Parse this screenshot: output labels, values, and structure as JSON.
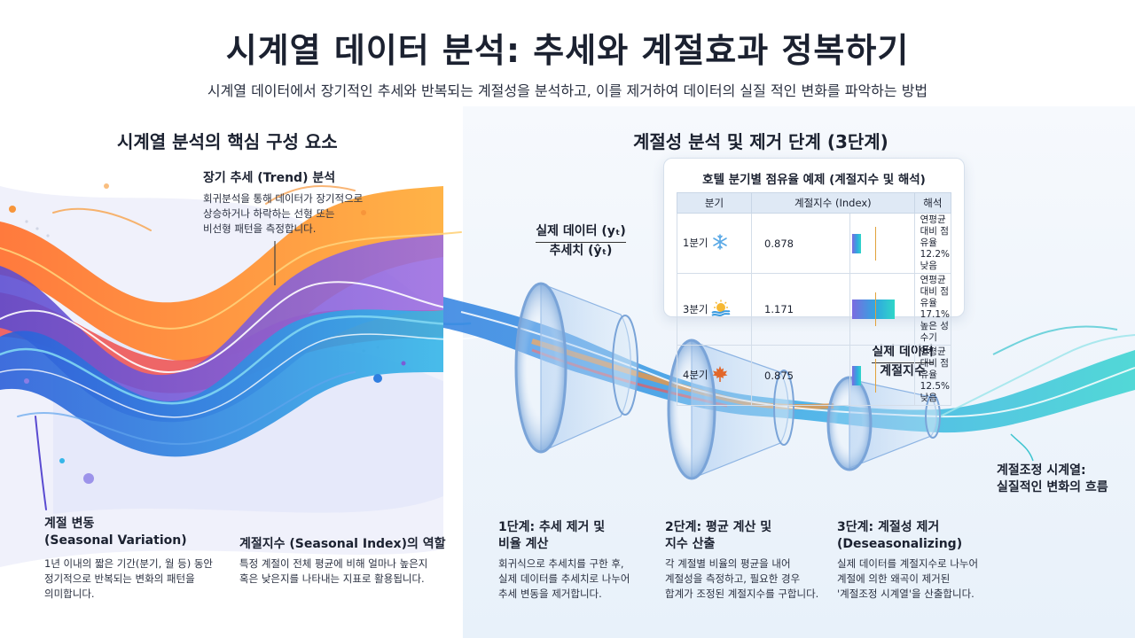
{
  "title": "시계열 데이터 분석: 추세와 계절효과 정복하기",
  "subtitle": "시계열 데이터에서 장기적인 추세와 반복되는 계절성을 분석하고, 이를 제거하여 데이터의 실질 적인 변화를 파악하는 방법",
  "left": {
    "heading": "시계열 분석의 핵심 구성 요소",
    "trend": {
      "title": "장기 추세 (Trend) 분석",
      "desc1": "회귀분석을 통해 데이터가 장기적으로",
      "desc2": "상승하거나 하락하는 선형 또는",
      "desc3": "비선형 패턴을 측정합니다."
    },
    "seasonal": {
      "title1": "계절 변동",
      "title2": "(Seasonal Variation)",
      "desc1": "1년 이내의 짧은 기간(분기, 월 등) 동안",
      "desc2": "정기적으로 반복되는 변화의 패턴을",
      "desc3": "의미합니다."
    },
    "index": {
      "title": "계절지수 (Seasonal Index)의 역할",
      "desc1": "특정 계절이 전체 평균에 비해 얼마나 높은지",
      "desc2": "혹은 낮은지를 나타내는 지표로 활용됩니다."
    }
  },
  "right": {
    "heading": "계절성 분석 및 제거 단계 (3단계)",
    "ratio": {
      "numerator": "실제 데이터 (yₜ)",
      "denominator": "추세치 (ŷₜ)"
    },
    "ratio2": {
      "numerator": "실제 데이터",
      "denominator": "계절지수"
    },
    "output": {
      "line1": "계절조정 시계열:",
      "line2": "실질적인 변화의 흐름"
    },
    "steps": [
      {
        "title1": "1단계: 추세 제거 및",
        "title2": "비율 계산",
        "desc1": "회귀식으로 추세치를 구한 후,",
        "desc2": "실제 데이터를 추세치로 나누어",
        "desc3": "추세 변동을 제거합니다."
      },
      {
        "title1": "2단계: 평균 계산 및",
        "title2": "지수 산출",
        "desc1": "각 계절별 비율의 평균을 내어",
        "desc2": "계절성을 측정하고, 필요한 경우",
        "desc3": "합계가 조정된 계절지수를 구합니다."
      },
      {
        "title1": "3단계: 계절성 제거",
        "title2": "(Deseasonalizing)",
        "desc1": "실제 데이터를 계절지수로 나누어",
        "desc2": "계절에 의한 왜곡이 제거된",
        "desc3": "'계절조정 시계열'을 산출합니다."
      }
    ]
  },
  "table": {
    "title": "호텔 분기별 점유율 예제 (계절지수 및 해석)",
    "headers": [
      "분기",
      "계절지수 (Index)",
      "해석"
    ],
    "rows": [
      {
        "quarter": "1분기",
        "icon": "snowflake-icon",
        "index": 0.878,
        "index_label": "0.878",
        "interp1": "연평균 대비 점유율",
        "interp2": "12.2% 낮음"
      },
      {
        "quarter": "3분기",
        "icon": "sun-icon",
        "index": 1.171,
        "index_label": "1.171",
        "interp1": "연평균 대비 점유율",
        "interp2": "17.1% 높은 성수기"
      },
      {
        "quarter": "4분기",
        "icon": "maple-leaf-icon",
        "index": 0.875,
        "index_label": "0.875",
        "interp1": "연평균 대비 점유율",
        "interp2": "12.5% 낮음"
      }
    ]
  },
  "colors": {
    "orange": "#f7953a",
    "purple": "#7b5cd6",
    "blue": "#2f7ee0",
    "teal": "#2fc8d2",
    "red": "#ef5a5a"
  }
}
